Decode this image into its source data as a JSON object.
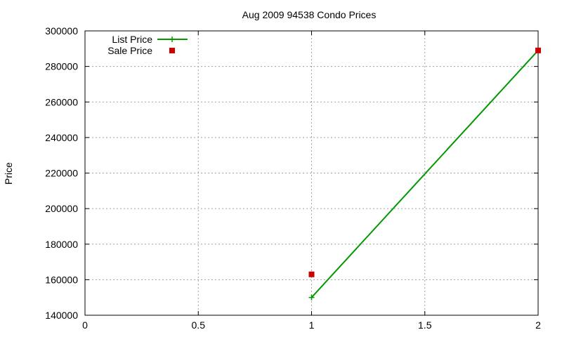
{
  "chart_data": {
    "type": "line",
    "title": "Aug 2009 94538 Condo Prices",
    "xlabel": "",
    "ylabel": "Price",
    "xlim": [
      0,
      2
    ],
    "ylim": [
      140000,
      300000
    ],
    "xticks": [
      0,
      0.5,
      1,
      1.5,
      2
    ],
    "xtick_labels": [
      "0",
      "0.5",
      "1",
      "1.5",
      "2"
    ],
    "yticks": [
      140000,
      160000,
      180000,
      200000,
      220000,
      240000,
      260000,
      280000,
      300000
    ],
    "ytick_labels": [
      "140000",
      "160000",
      "180000",
      "200000",
      "220000",
      "240000",
      "260000",
      "280000",
      "300000"
    ],
    "grid": true,
    "legend_position": "top-left",
    "series": [
      {
        "name": "List Price",
        "style": "linespoints",
        "marker": "plus",
        "color": "#009900",
        "points": [
          {
            "x": 1,
            "y": 150000
          },
          {
            "x": 2,
            "y": 289000
          }
        ]
      },
      {
        "name": "Sale Price",
        "style": "points",
        "marker": "square",
        "color": "#cc0000",
        "points": [
          {
            "x": 1,
            "y": 163000
          },
          {
            "x": 2,
            "y": 289000
          }
        ]
      }
    ]
  }
}
